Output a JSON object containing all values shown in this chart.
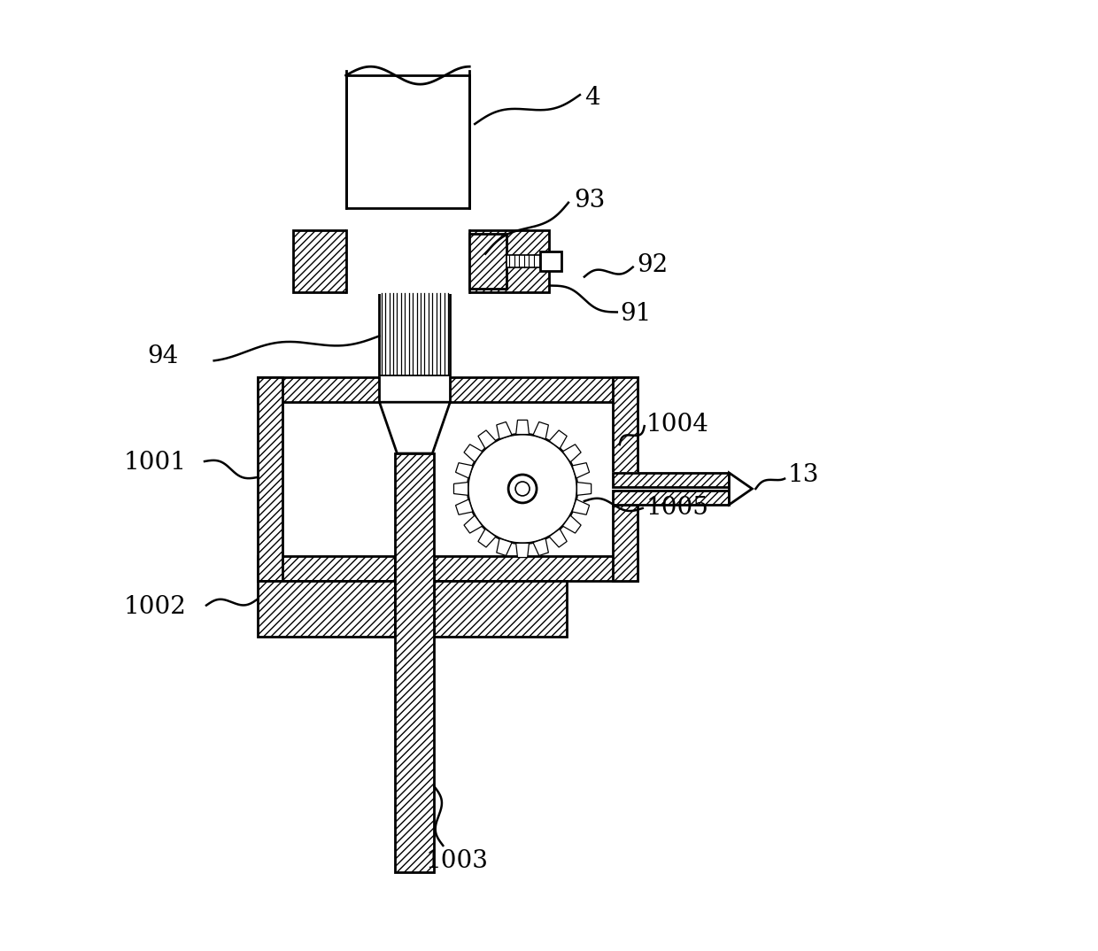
{
  "bg_color": "#ffffff",
  "line_color": "#000000",
  "fig_width": 12.4,
  "fig_height": 10.74,
  "lw": 2.0,
  "lfs": 20
}
